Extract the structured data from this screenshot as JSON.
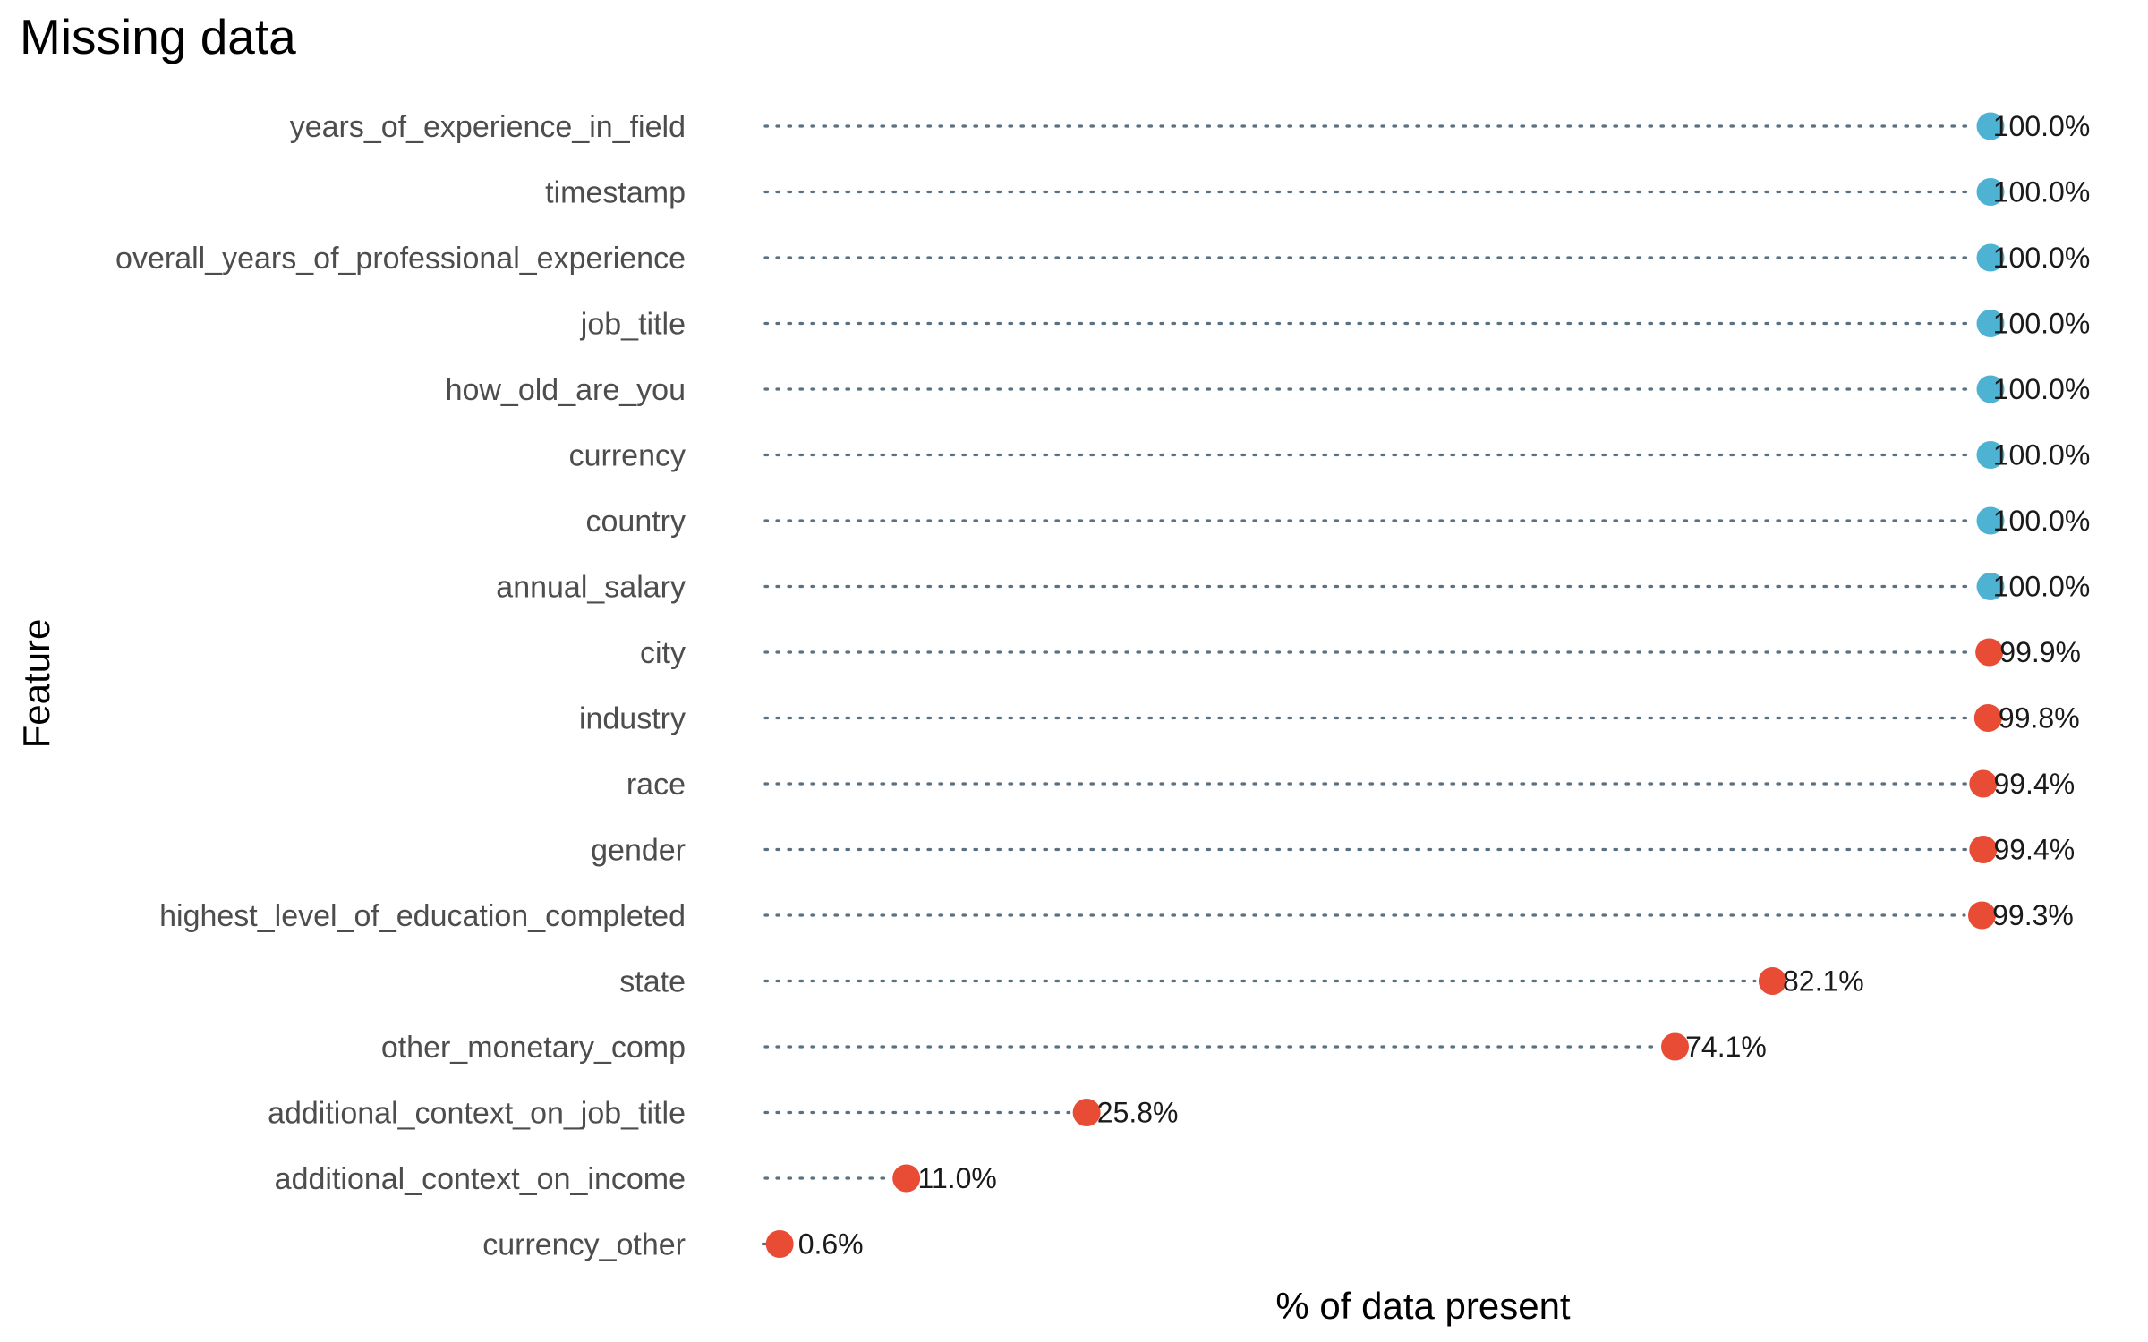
{
  "chart_data": {
    "type": "lollipop",
    "title": "Missing data",
    "xlabel": "% of data present",
    "ylabel": "Feature",
    "xlim": [
      0,
      100
    ],
    "grid": false,
    "colors": {
      "complete": "#4eb3d3",
      "incomplete": "#e84c35"
    },
    "categories": [
      "years_of_experience_in_field",
      "timestamp",
      "overall_years_of_professional_experience",
      "job_title",
      "how_old_are_you",
      "currency",
      "country",
      "annual_salary",
      "city",
      "industry",
      "race",
      "gender",
      "highest_level_of_education_completed",
      "state",
      "other_monetary_comp",
      "additional_context_on_job_title",
      "additional_context_on_income",
      "currency_other"
    ],
    "values": [
      100.0,
      100.0,
      100.0,
      100.0,
      100.0,
      100.0,
      100.0,
      100.0,
      99.9,
      99.8,
      99.4,
      99.4,
      99.3,
      82.1,
      74.1,
      25.8,
      11.0,
      0.6
    ],
    "labels": [
      "100.0%",
      "100.0%",
      "100.0%",
      "100.0%",
      "100.0%",
      "100.0%",
      "100.0%",
      "100.0%",
      "99.9%",
      "99.8%",
      "99.4%",
      "99.4%",
      "99.3%",
      "82.1%",
      "74.1%",
      "25.8%",
      "11.0%",
      "0.6%"
    ]
  }
}
